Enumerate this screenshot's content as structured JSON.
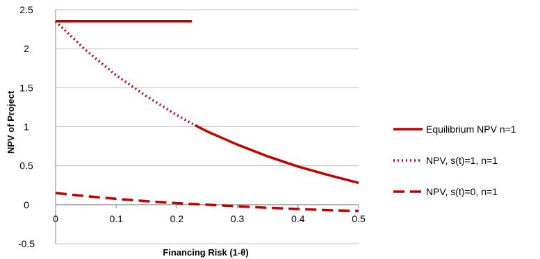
{
  "chart_data": {
    "type": "line",
    "title": "",
    "xlabel": "Financing Risk (1-θ)",
    "ylabel": "NPV of Project",
    "xlim": [
      0,
      0.5
    ],
    "ylim": [
      -0.5,
      2.5
    ],
    "x_ticks": [
      "0",
      "0.1",
      "0.2",
      "0.3",
      "0.4",
      "0.5"
    ],
    "y_ticks": [
      "-0.5",
      "0",
      "0.5",
      "1",
      "1.5",
      "2",
      "2.5"
    ],
    "grid": "horizontal",
    "legend_position": "right",
    "colors": {
      "series": "#c00000",
      "grid": "#bfbfbf",
      "axis": "#808080"
    },
    "series": [
      {
        "name": "Equilibrium NPV n=1",
        "style": "solid",
        "x": [
          0,
          0.225
        ],
        "y": [
          2.35,
          2.35
        ]
      },
      {
        "name": "NPV, s(t)=1, n=1",
        "style": "dotted",
        "x": [
          0,
          0.05,
          0.1,
          0.15,
          0.2,
          0.23
        ],
        "y": [
          2.35,
          1.98,
          1.66,
          1.39,
          1.15,
          1.02
        ]
      },
      {
        "name": "",
        "style": "solid",
        "x": [
          0.23,
          0.25,
          0.3,
          0.35,
          0.4,
          0.45,
          0.5
        ],
        "y": [
          1.02,
          0.94,
          0.77,
          0.62,
          0.49,
          0.38,
          0.28
        ]
      },
      {
        "name": "NPV, s(t)=0, n=1",
        "style": "dashed",
        "x": [
          0,
          0.05,
          0.1,
          0.15,
          0.2,
          0.25,
          0.3,
          0.35,
          0.4,
          0.45,
          0.5
        ],
        "y": [
          0.15,
          0.11,
          0.075,
          0.045,
          0.02,
          0.0,
          -0.02,
          -0.04,
          -0.055,
          -0.07,
          -0.08
        ]
      }
    ]
  }
}
